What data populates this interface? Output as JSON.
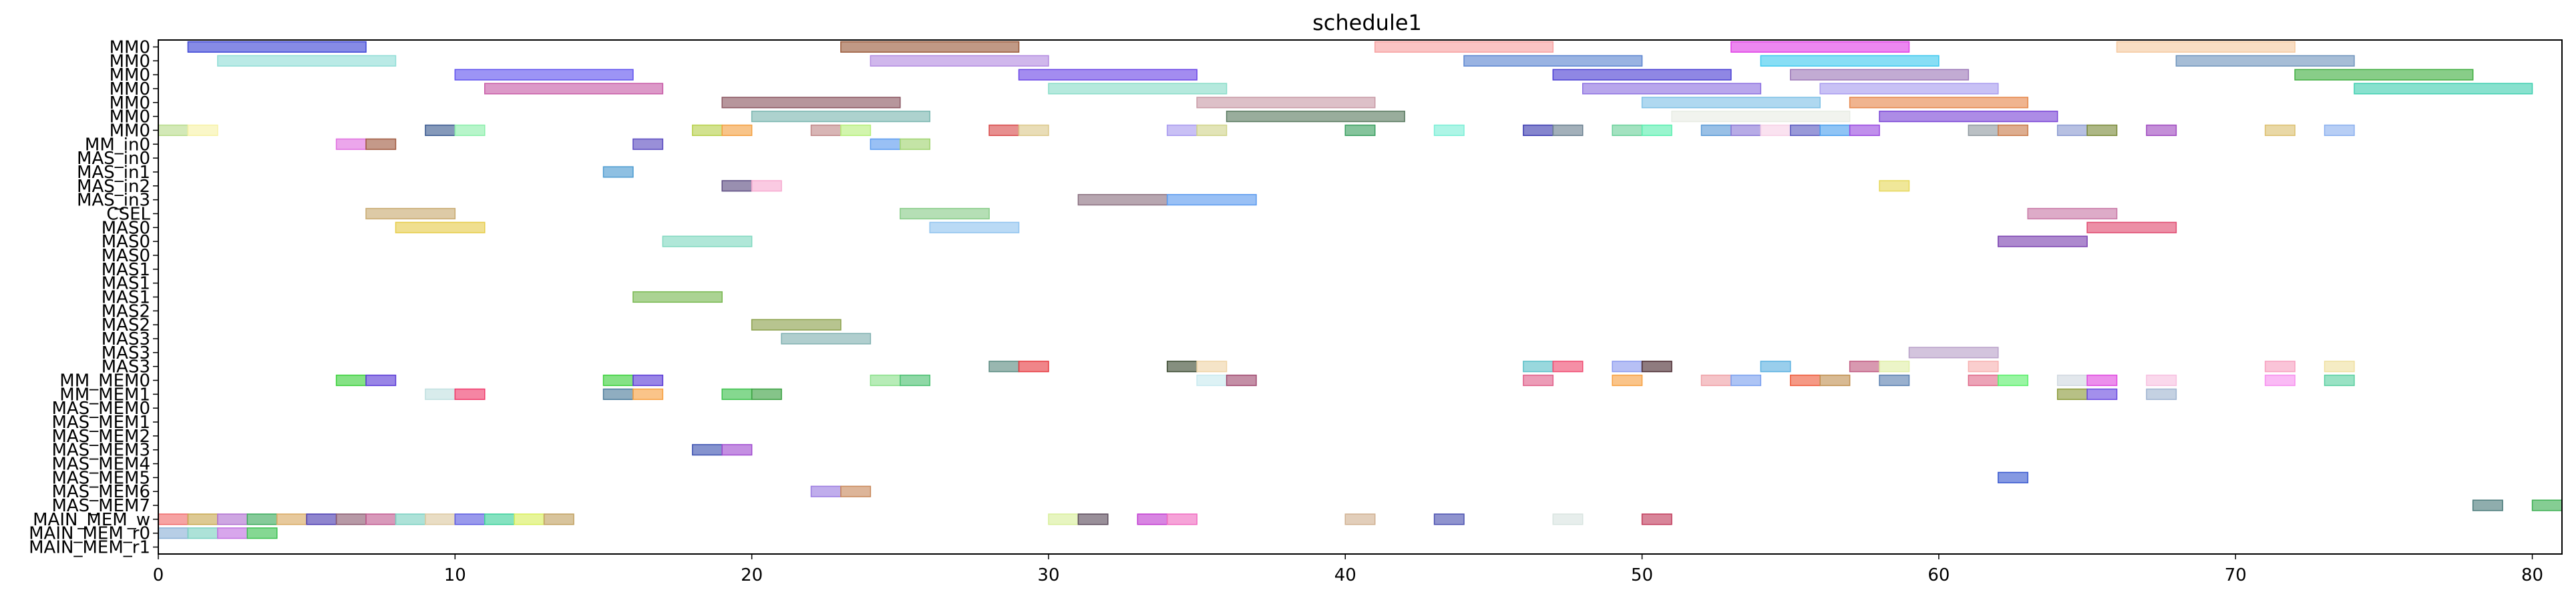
{
  "chart_data": {
    "type": "bar",
    "orientation": "horizontal-timeline",
    "title": "schedule1",
    "xlabel": "",
    "ylabel": "",
    "xlim": [
      0,
      81
    ],
    "xticks": [
      0,
      10,
      20,
      30,
      40,
      50,
      60,
      70,
      80
    ],
    "grid": false,
    "rows": [
      "MM0",
      "MM0",
      "MM0",
      "MM0",
      "MM0",
      "MM0",
      "MM0",
      "MM_in0",
      "MAS_in0",
      "MAS_in1",
      "MAS_in2",
      "MAS_in3",
      "CSEL",
      "MAS0",
      "MAS0",
      "MAS0",
      "MAS1",
      "MAS1",
      "MAS1",
      "MAS2",
      "MAS2",
      "MAS3",
      "MAS3",
      "MAS3",
      "MM_MEM0",
      "MM_MEM1",
      "MAS_MEM0",
      "MAS_MEM1",
      "MAS_MEM2",
      "MAS_MEM3",
      "MAS_MEM4",
      "MAS_MEM5",
      "MAS_MEM6",
      "MAS_MEM7",
      "MAIN_MEM_w",
      "MAIN_MEM_r0",
      "MAIN_MEM_r1"
    ],
    "tasks": [
      {
        "row": 0,
        "start": 1,
        "end": 7,
        "color": "#3b44d6"
      },
      {
        "row": 0,
        "start": 23,
        "end": 29,
        "color": "#9a5a3a"
      },
      {
        "row": 0,
        "start": 41,
        "end": 47,
        "color": "#f7a0a0"
      },
      {
        "row": 0,
        "start": 53,
        "end": 59,
        "color": "#e03ee6"
      },
      {
        "row": 0,
        "start": 66,
        "end": 72,
        "color": "#f5caa0"
      },
      {
        "row": 1,
        "start": 2,
        "end": 8,
        "color": "#8fddd6"
      },
      {
        "row": 1,
        "start": 24,
        "end": 30,
        "color": "#b38be0"
      },
      {
        "row": 1,
        "start": 44,
        "end": 50,
        "color": "#5a84d0"
      },
      {
        "row": 1,
        "start": 54,
        "end": 60,
        "color": "#3ec9ef"
      },
      {
        "row": 1,
        "start": 68,
        "end": 74,
        "color": "#6f94bd"
      },
      {
        "row": 2,
        "start": 10,
        "end": 16,
        "color": "#5f52ef"
      },
      {
        "row": 2,
        "start": 29,
        "end": 35,
        "color": "#6a45e6"
      },
      {
        "row": 2,
        "start": 47,
        "end": 53,
        "color": "#4a3ed4"
      },
      {
        "row": 2,
        "start": 55,
        "end": 61,
        "color": "#9c78b8"
      },
      {
        "row": 2,
        "start": 72,
        "end": 78,
        "color": "#3fae3f"
      },
      {
        "row": 3,
        "start": 11,
        "end": 17,
        "color": "#c75aa6"
      },
      {
        "row": 3,
        "start": 30,
        "end": 36,
        "color": "#88dcc8"
      },
      {
        "row": 3,
        "start": 48,
        "end": 54,
        "color": "#8c70e0"
      },
      {
        "row": 3,
        "start": 56,
        "end": 62,
        "color": "#a79bef"
      },
      {
        "row": 3,
        "start": 74,
        "end": 80,
        "color": "#3fcfb0"
      },
      {
        "row": 4,
        "start": 19,
        "end": 25,
        "color": "#8a5560"
      },
      {
        "row": 4,
        "start": 35,
        "end": 41,
        "color": "#c89aa6"
      },
      {
        "row": 4,
        "start": 50,
        "end": 56,
        "color": "#7ec0e6"
      },
      {
        "row": 4,
        "start": 57,
        "end": 63,
        "color": "#e6864a"
      },
      {
        "row": 5,
        "start": 20,
        "end": 26,
        "color": "#7ab6b0"
      },
      {
        "row": 5,
        "start": 36,
        "end": 42,
        "color": "#5a7a60"
      },
      {
        "row": 5,
        "start": 51,
        "end": 57,
        "color": "#e8ece4"
      },
      {
        "row": 5,
        "start": 58,
        "end": 64,
        "color": "#7a45d6"
      },
      {
        "row": 6,
        "start": 0,
        "end": 1,
        "color": "#b8dc8a"
      },
      {
        "row": 6,
        "start": 1,
        "end": 2,
        "color": "#f7f2a6"
      },
      {
        "row": 6,
        "start": 9,
        "end": 10,
        "color": "#3a5a90"
      },
      {
        "row": 6,
        "start": 10,
        "end": 11,
        "color": "#8aefaa"
      },
      {
        "row": 6,
        "start": 18,
        "end": 19,
        "color": "#b6d04a"
      },
      {
        "row": 6,
        "start": 19,
        "end": 20,
        "color": "#f4a040"
      },
      {
        "row": 6,
        "start": 22,
        "end": 23,
        "color": "#c08888"
      },
      {
        "row": 6,
        "start": 23,
        "end": 24,
        "color": "#b6ef7a"
      },
      {
        "row": 6,
        "start": 28,
        "end": 29,
        "color": "#d84a4a"
      },
      {
        "row": 6,
        "start": 29,
        "end": 30,
        "color": "#dcc88a"
      },
      {
        "row": 6,
        "start": 34,
        "end": 35,
        "color": "#a89aef"
      },
      {
        "row": 6,
        "start": 35,
        "end": 36,
        "color": "#d0d48a"
      },
      {
        "row": 6,
        "start": 40,
        "end": 41,
        "color": "#3aa060"
      },
      {
        "row": 6,
        "start": 43,
        "end": 44,
        "color": "#7aefd6"
      },
      {
        "row": 6,
        "start": 46,
        "end": 47,
        "color": "#3a3ab0"
      },
      {
        "row": 6,
        "start": 47,
        "end": 48,
        "color": "#6a8090"
      },
      {
        "row": 6,
        "start": 49,
        "end": 50,
        "color": "#6ad09a"
      },
      {
        "row": 6,
        "start": 50,
        "end": 51,
        "color": "#5aefb0"
      },
      {
        "row": 6,
        "start": 52,
        "end": 53,
        "color": "#5a9ad6"
      },
      {
        "row": 6,
        "start": 53,
        "end": 54,
        "color": "#8a78d6"
      },
      {
        "row": 6,
        "start": 54,
        "end": 55,
        "color": "#f7d0e6"
      },
      {
        "row": 6,
        "start": 55,
        "end": 56,
        "color": "#5a5ac0"
      },
      {
        "row": 6,
        "start": 56,
        "end": 57,
        "color": "#4aa0ef"
      },
      {
        "row": 6,
        "start": 57,
        "end": 58,
        "color": "#9a4ae0"
      },
      {
        "row": 6,
        "start": 61,
        "end": 62,
        "color": "#909aa0"
      },
      {
        "row": 6,
        "start": 62,
        "end": 63,
        "color": "#c87a4a"
      },
      {
        "row": 6,
        "start": 64,
        "end": 65,
        "color": "#8a9ad0"
      },
      {
        "row": 6,
        "start": 65,
        "end": 66,
        "color": "#7a8a3a"
      },
      {
        "row": 6,
        "start": 67,
        "end": 68,
        "color": "#a04ac0"
      },
      {
        "row": 6,
        "start": 71,
        "end": 72,
        "color": "#dcc070"
      },
      {
        "row": 6,
        "start": 73,
        "end": 74,
        "color": "#8ab0ef"
      },
      {
        "row": 7,
        "start": 6,
        "end": 7,
        "color": "#e070e0"
      },
      {
        "row": 7,
        "start": 7,
        "end": 8,
        "color": "#a05a40"
      },
      {
        "row": 7,
        "start": 16,
        "end": 17,
        "color": "#5a4ac0"
      },
      {
        "row": 7,
        "start": 24,
        "end": 25,
        "color": "#5a9aef"
      },
      {
        "row": 7,
        "start": 25,
        "end": 26,
        "color": "#a0d470"
      },
      {
        "row": 9,
        "start": 15,
        "end": 16,
        "color": "#4a9ad0"
      },
      {
        "row": 10,
        "start": 19,
        "end": 20,
        "color": "#5a4a80"
      },
      {
        "row": 10,
        "start": 20,
        "end": 21,
        "color": "#f7aad0"
      },
      {
        "row": 10,
        "start": 58,
        "end": 59,
        "color": "#e6d85a"
      },
      {
        "row": 11,
        "start": 31,
        "end": 34,
        "color": "#8a7080"
      },
      {
        "row": 11,
        "start": 34,
        "end": 37,
        "color": "#5a9aef"
      },
      {
        "row": 12,
        "start": 7,
        "end": 10,
        "color": "#c8aa70"
      },
      {
        "row": 12,
        "start": 25,
        "end": 28,
        "color": "#88cc88"
      },
      {
        "row": 12,
        "start": 63,
        "end": 66,
        "color": "#c878a6"
      },
      {
        "row": 13,
        "start": 8,
        "end": 11,
        "color": "#e6cc4a"
      },
      {
        "row": 13,
        "start": 26,
        "end": 29,
        "color": "#90c4ef"
      },
      {
        "row": 13,
        "start": 65,
        "end": 68,
        "color": "#e04a70"
      },
      {
        "row": 14,
        "start": 17,
        "end": 20,
        "color": "#80d8c0"
      },
      {
        "row": 14,
        "start": 62,
        "end": 65,
        "color": "#7a40b0"
      },
      {
        "row": 18,
        "start": 16,
        "end": 19,
        "color": "#78b850"
      },
      {
        "row": 20,
        "start": 20,
        "end": 23,
        "color": "#8aa04a"
      },
      {
        "row": 21,
        "start": 21,
        "end": 24,
        "color": "#80b0b0"
      },
      {
        "row": 22,
        "start": 59,
        "end": 62,
        "color": "#b8a0c8"
      },
      {
        "row": 23,
        "start": 28,
        "end": 29,
        "color": "#5a8a80"
      },
      {
        "row": 23,
        "start": 29,
        "end": 30,
        "color": "#e63a40"
      },
      {
        "row": 23,
        "start": 34,
        "end": 35,
        "color": "#3a4a30"
      },
      {
        "row": 23,
        "start": 35,
        "end": 36,
        "color": "#efd4a6"
      },
      {
        "row": 23,
        "start": 46,
        "end": 47,
        "color": "#5ac0c8"
      },
      {
        "row": 23,
        "start": 47,
        "end": 48,
        "color": "#ef4a70"
      },
      {
        "row": 23,
        "start": 49,
        "end": 50,
        "color": "#8a9aef"
      },
      {
        "row": 23,
        "start": 50,
        "end": 51,
        "color": "#4a2a30"
      },
      {
        "row": 23,
        "start": 54,
        "end": 55,
        "color": "#5ab0e0"
      },
      {
        "row": 23,
        "start": 57,
        "end": 58,
        "color": "#c05a80"
      },
      {
        "row": 23,
        "start": 58,
        "end": 59,
        "color": "#e0efa6"
      },
      {
        "row": 23,
        "start": 61,
        "end": 62,
        "color": "#f7b0b0"
      },
      {
        "row": 23,
        "start": 71,
        "end": 72,
        "color": "#f7a0c0"
      },
      {
        "row": 23,
        "start": 73,
        "end": 74,
        "color": "#efe0a0"
      },
      {
        "row": 24,
        "start": 6,
        "end": 7,
        "color": "#3ad03a"
      },
      {
        "row": 24,
        "start": 7,
        "end": 8,
        "color": "#5a3ad6"
      },
      {
        "row": 24,
        "start": 15,
        "end": 16,
        "color": "#3ad03a"
      },
      {
        "row": 24,
        "start": 16,
        "end": 17,
        "color": "#5a3ad6"
      },
      {
        "row": 24,
        "start": 24,
        "end": 25,
        "color": "#8ae08a"
      },
      {
        "row": 24,
        "start": 25,
        "end": 26,
        "color": "#4ac070"
      },
      {
        "row": 24,
        "start": 35,
        "end": 36,
        "color": "#c8eaef"
      },
      {
        "row": 24,
        "start": 36,
        "end": 37,
        "color": "#a04a70"
      },
      {
        "row": 24,
        "start": 46,
        "end": 47,
        "color": "#e0608a"
      },
      {
        "row": 24,
        "start": 49,
        "end": 50,
        "color": "#f7a040"
      },
      {
        "row": 24,
        "start": 52,
        "end": 53,
        "color": "#efa0a6"
      },
      {
        "row": 24,
        "start": 53,
        "end": 54,
        "color": "#7aa0ef"
      },
      {
        "row": 24,
        "start": 55,
        "end": 56,
        "color": "#ef5a3a"
      },
      {
        "row": 24,
        "start": 56,
        "end": 57,
        "color": "#c09050"
      },
      {
        "row": 24,
        "start": 58,
        "end": 59,
        "color": "#5a80b0"
      },
      {
        "row": 24,
        "start": 61,
        "end": 62,
        "color": "#e06a8a"
      },
      {
        "row": 24,
        "start": 62,
        "end": 63,
        "color": "#5aef6a"
      },
      {
        "row": 24,
        "start": 64,
        "end": 65,
        "color": "#d0d8e0"
      },
      {
        "row": 24,
        "start": 65,
        "end": 66,
        "color": "#e04ae0"
      },
      {
        "row": 24,
        "start": 67,
        "end": 68,
        "color": "#f7c0e0"
      },
      {
        "row": 24,
        "start": 71,
        "end": 72,
        "color": "#f790ef"
      },
      {
        "row": 24,
        "start": 73,
        "end": 74,
        "color": "#5ad0a0"
      },
      {
        "row": 25,
        "start": 9,
        "end": 10,
        "color": "#c0e0e0"
      },
      {
        "row": 25,
        "start": 10,
        "end": 11,
        "color": "#ef3a6a"
      },
      {
        "row": 25,
        "start": 15,
        "end": 16,
        "color": "#4a7a9a"
      },
      {
        "row": 25,
        "start": 16,
        "end": 17,
        "color": "#f7a040"
      },
      {
        "row": 25,
        "start": 19,
        "end": 20,
        "color": "#3ac04a"
      },
      {
        "row": 25,
        "start": 20,
        "end": 21,
        "color": "#3aa040"
      },
      {
        "row": 25,
        "start": 64,
        "end": 65,
        "color": "#8a9a3a"
      },
      {
        "row": 25,
        "start": 65,
        "end": 66,
        "color": "#6a4ae0"
      },
      {
        "row": 25,
        "start": 67,
        "end": 68,
        "color": "#a0b4d0"
      },
      {
        "row": 29,
        "start": 18,
        "end": 19,
        "color": "#3a50b0"
      },
      {
        "row": 29,
        "start": 19,
        "end": 20,
        "color": "#a04ad0"
      },
      {
        "row": 31,
        "start": 62,
        "end": 63,
        "color": "#3a5ad0"
      },
      {
        "row": 32,
        "start": 22,
        "end": 23,
        "color": "#9a7ae0"
      },
      {
        "row": 32,
        "start": 23,
        "end": 24,
        "color": "#c8885a"
      },
      {
        "row": 33,
        "start": 78,
        "end": 79,
        "color": "#4a7a7a"
      },
      {
        "row": 33,
        "start": 80,
        "end": 81,
        "color": "#3aae50"
      },
      {
        "row": 34,
        "start": 0,
        "end": 1,
        "color": "#f06a6a"
      },
      {
        "row": 34,
        "start": 1,
        "end": 2,
        "color": "#c8a850"
      },
      {
        "row": 34,
        "start": 2,
        "end": 3,
        "color": "#b070d0"
      },
      {
        "row": 34,
        "start": 3,
        "end": 4,
        "color": "#3aaa5a"
      },
      {
        "row": 34,
        "start": 4,
        "end": 5,
        "color": "#d8a860"
      },
      {
        "row": 34,
        "start": 5,
        "end": 6,
        "color": "#4a3ab0"
      },
      {
        "row": 34,
        "start": 6,
        "end": 7,
        "color": "#8a5a70"
      },
      {
        "row": 34,
        "start": 7,
        "end": 8,
        "color": "#c05a90"
      },
      {
        "row": 34,
        "start": 8,
        "end": 9,
        "color": "#7ad0c0"
      },
      {
        "row": 34,
        "start": 9,
        "end": 10,
        "color": "#dcc8a0"
      },
      {
        "row": 34,
        "start": 10,
        "end": 11,
        "color": "#5a5ae0"
      },
      {
        "row": 34,
        "start": 11,
        "end": 12,
        "color": "#3ad09a"
      },
      {
        "row": 34,
        "start": 12,
        "end": 13,
        "color": "#d8ef5a"
      },
      {
        "row": 34,
        "start": 13,
        "end": 14,
        "color": "#c0a060"
      },
      {
        "row": 34,
        "start": 30,
        "end": 31,
        "color": "#d8ef9a"
      },
      {
        "row": 34,
        "start": 31,
        "end": 32,
        "color": "#5a4a5a"
      },
      {
        "row": 34,
        "start": 33,
        "end": 34,
        "color": "#c03ad0"
      },
      {
        "row": 34,
        "start": 34,
        "end": 35,
        "color": "#f06ac0"
      },
      {
        "row": 34,
        "start": 40,
        "end": 41,
        "color": "#d0b090"
      },
      {
        "row": 34,
        "start": 43,
        "end": 44,
        "color": "#4a50b0"
      },
      {
        "row": 34,
        "start": 47,
        "end": 48,
        "color": "#d8e4e0"
      },
      {
        "row": 34,
        "start": 50,
        "end": 51,
        "color": "#c03a5a"
      },
      {
        "row": 35,
        "start": 0,
        "end": 1,
        "color": "#8ab0d6"
      },
      {
        "row": 35,
        "start": 1,
        "end": 2,
        "color": "#7ad0c0"
      },
      {
        "row": 35,
        "start": 2,
        "end": 3,
        "color": "#c070e0"
      },
      {
        "row": 35,
        "start": 3,
        "end": 4,
        "color": "#3ac050"
      }
    ]
  }
}
